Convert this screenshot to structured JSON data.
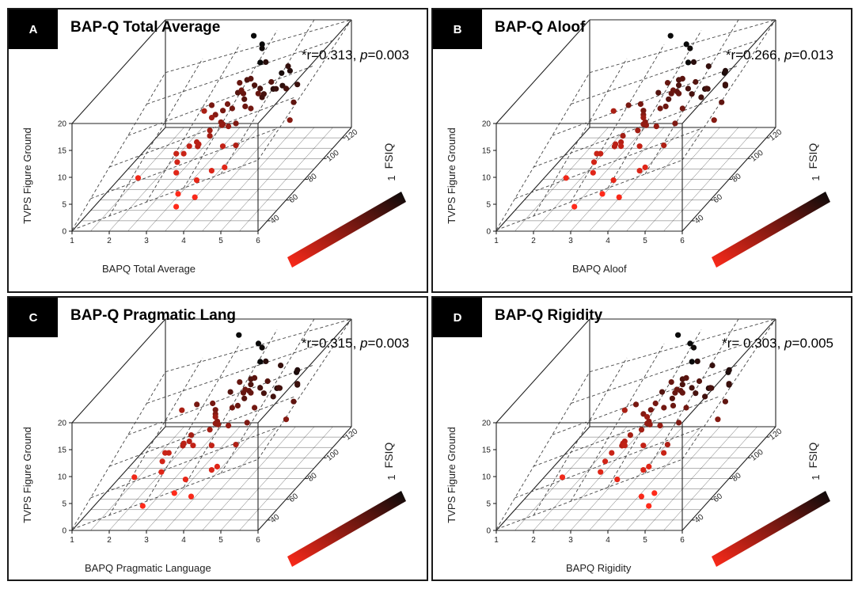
{
  "chart_data": [
    {
      "type": "scatter",
      "panel": "A",
      "title": "BAP-Q Total Average",
      "stat_prefix": "*r=0.313, ",
      "stat_p_label": "p",
      "stat_p_value": "=0.003",
      "xlabel": "BAPQ Total Average",
      "ylabel": "TVPS Figure Ground",
      "zlabel": "FSIQ",
      "x_ticks": [
        "1",
        "2",
        "3",
        "4",
        "5",
        "6"
      ],
      "y_ticks": [
        "0",
        "5",
        "10",
        "15",
        "20"
      ],
      "z_ticks": [
        "40",
        "60",
        "80",
        "100",
        "120"
      ],
      "colorbar_label": "1",
      "xlim": [
        1,
        6
      ],
      "ylim": [
        0,
        20
      ],
      "zlim": [
        30,
        130
      ],
      "x": [
        3.8,
        3.6,
        3.9,
        4.1,
        3.7,
        4.0,
        4.3,
        3.5,
        3.8,
        4.2,
        3.4,
        4.0,
        3.7,
        4.4,
        3.9,
        3.6,
        4.1,
        3.8,
        4.6,
        3.3,
        4.2,
        3.9,
        4.5,
        3.5,
        4.0,
        3.7,
        4.3,
        3.2,
        4.1,
        3.8,
        4.7,
        3.6,
        4.2,
        5.0,
        3.9,
        4.4,
        3.7,
        4.0,
        4.8,
        5.2,
        4.6,
        3.5,
        4.3,
        5.4,
        4.9,
        3.9,
        4.2,
        2.4,
        5.6,
        4.5,
        3.1,
        3.6,
        4.0,
        4.7,
        3.4,
        4.1,
        3.8,
        4.4,
        3.3,
        4.5,
        4.2,
        3.6
      ],
      "y": [
        13,
        12,
        11,
        14,
        10,
        12,
        13,
        9,
        11,
        12,
        10,
        14,
        13,
        11,
        12,
        15,
        10,
        13,
        12,
        9,
        14,
        11,
        13,
        10,
        16,
        12,
        11,
        8,
        15,
        14,
        12,
        10,
        16,
        13,
        17,
        12,
        11,
        15,
        14,
        13,
        8,
        18,
        10,
        12,
        16,
        6,
        7,
        7,
        11,
        14,
        9,
        5,
        4,
        15,
        13,
        11,
        17,
        12,
        7,
        9,
        16,
        3
      ],
      "z": [
        85,
        80,
        75,
        90,
        70,
        95,
        100,
        65,
        78,
        88,
        60,
        92,
        72,
        110,
        86,
        68,
        82,
        96,
        105,
        58,
        98,
        76,
        115,
        64,
        90,
        84,
        102,
        55,
        88,
        120,
        108,
        62,
        94,
        100,
        118,
        86,
        70,
        98,
        112,
        104,
        50,
        125,
        60,
        92,
        106,
        48,
        52,
        45,
        80,
        90,
        58,
        40,
        42,
        96,
        84,
        74,
        122,
        100,
        50,
        66,
        110,
        38
      ]
    },
    {
      "type": "scatter",
      "panel": "B",
      "title": "BAP-Q Aloof",
      "stat_prefix": "*r=0.266, ",
      "stat_p_label": "p",
      "stat_p_value": "=0.013",
      "xlabel": "BAPQ Aloof",
      "ylabel": "TVPS Figure Ground",
      "zlabel": "FSIQ",
      "x_ticks": [
        "1",
        "2",
        "3",
        "4",
        "5",
        "6"
      ],
      "y_ticks": [
        "0",
        "5",
        "10",
        "15",
        "20"
      ],
      "z_ticks": [
        "40",
        "60",
        "80",
        "100",
        "120"
      ],
      "colorbar_label": "1",
      "xlim": [
        1,
        6
      ],
      "ylim": [
        0,
        20
      ],
      "zlim": [
        30,
        130
      ],
      "x": [
        3.5,
        3.7,
        3.9,
        4.2,
        3.4,
        4.0,
        4.4,
        3.3,
        3.8,
        4.1,
        3.6,
        4.3,
        3.9,
        4.6,
        4.0,
        3.2,
        4.5,
        3.7,
        4.8,
        3.1,
        4.2,
        3.8,
        5.0,
        3.5,
        4.1,
        3.6,
        4.7,
        3.0,
        4.3,
        3.9,
        5.2,
        3.4,
        4.4,
        4.9,
        4.0,
        4.6,
        3.8,
        4.2,
        5.1,
        5.3,
        4.5,
        3.3,
        4.1,
        5.5,
        4.8,
        3.7,
        4.3,
        2.5,
        5.6,
        4.4,
        3.0,
        3.6,
        4.0,
        4.7,
        3.2,
        4.2,
        3.8,
        4.5,
        3.1,
        4.6,
        4.3,
        2.9
      ],
      "y": [
        13,
        12,
        11,
        14,
        10,
        12,
        13,
        9,
        11,
        12,
        10,
        14,
        13,
        11,
        12,
        15,
        10,
        13,
        12,
        9,
        14,
        11,
        13,
        10,
        16,
        12,
        11,
        8,
        15,
        14,
        12,
        10,
        16,
        13,
        17,
        12,
        11,
        15,
        14,
        13,
        8,
        18,
        10,
        12,
        16,
        6,
        7,
        7,
        11,
        14,
        9,
        5,
        4,
        15,
        13,
        11,
        17,
        12,
        7,
        9,
        16,
        3
      ],
      "z": [
        85,
        80,
        75,
        90,
        70,
        95,
        100,
        65,
        78,
        88,
        60,
        92,
        72,
        110,
        86,
        68,
        82,
        96,
        105,
        58,
        98,
        76,
        115,
        64,
        90,
        84,
        102,
        55,
        88,
        120,
        108,
        62,
        94,
        100,
        118,
        86,
        70,
        98,
        112,
        104,
        50,
        125,
        60,
        92,
        106,
        48,
        52,
        45,
        80,
        90,
        58,
        40,
        42,
        96,
        84,
        74,
        122,
        100,
        50,
        66,
        110,
        38
      ]
    },
    {
      "type": "scatter",
      "panel": "C",
      "title": "BAP-Q Pragmatic Lang",
      "stat_prefix": "*r=0.315, ",
      "stat_p_label": "p",
      "stat_p_value": "=0.003",
      "xlabel": "BAPQ Pragmatic Language",
      "ylabel": "TVPS Figure Ground",
      "zlabel": "FSIQ",
      "x_ticks": [
        "1",
        "2",
        "3",
        "4",
        "5",
        "6"
      ],
      "y_ticks": [
        "0",
        "5",
        "10",
        "15",
        "20"
      ],
      "z_ticks": [
        "40",
        "60",
        "80",
        "100",
        "120"
      ],
      "colorbar_label": "1",
      "xlim": [
        1,
        6
      ],
      "ylim": [
        0,
        20
      ],
      "zlim": [
        30,
        130
      ],
      "x": [
        3.4,
        3.6,
        3.8,
        4.1,
        3.2,
        4.0,
        4.3,
        3.1,
        3.7,
        4.0,
        3.5,
        4.2,
        3.8,
        4.5,
        3.9,
        3.0,
        4.4,
        3.6,
        4.7,
        2.9,
        4.1,
        3.7,
        4.9,
        3.3,
        4.0,
        3.5,
        4.6,
        2.8,
        4.2,
        3.8,
        5.1,
        3.2,
        4.3,
        4.8,
        3.9,
        4.5,
        3.7,
        4.1,
        5.0,
        5.2,
        4.4,
        3.1,
        4.0,
        5.4,
        4.7,
        3.6,
        4.2,
        2.3,
        5.5,
        4.3,
        2.8,
        3.5,
        3.9,
        4.6,
        3.0,
        4.1,
        3.7,
        4.4,
        2.9,
        4.5,
        4.2,
        2.7
      ],
      "y": [
        13,
        12,
        11,
        14,
        10,
        12,
        13,
        9,
        11,
        12,
        10,
        14,
        13,
        11,
        12,
        15,
        10,
        13,
        12,
        9,
        14,
        11,
        13,
        10,
        16,
        12,
        11,
        8,
        15,
        14,
        12,
        10,
        16,
        13,
        17,
        12,
        11,
        15,
        14,
        13,
        8,
        18,
        10,
        12,
        16,
        6,
        7,
        7,
        11,
        14,
        9,
        5,
        4,
        15,
        13,
        11,
        17,
        12,
        7,
        9,
        16,
        3
      ],
      "z": [
        85,
        80,
        75,
        90,
        70,
        95,
        100,
        65,
        78,
        88,
        60,
        92,
        72,
        110,
        86,
        68,
        82,
        96,
        105,
        58,
        98,
        76,
        115,
        64,
        90,
        84,
        102,
        55,
        88,
        120,
        108,
        62,
        94,
        100,
        118,
        86,
        70,
        98,
        112,
        104,
        50,
        125,
        60,
        92,
        106,
        48,
        52,
        45,
        80,
        90,
        58,
        40,
        42,
        96,
        84,
        74,
        122,
        100,
        50,
        66,
        110,
        38
      ]
    },
    {
      "type": "scatter",
      "panel": "D",
      "title": "BAP-Q Rigidity",
      "stat_prefix": "*r= 0.303, ",
      "stat_p_label": "p",
      "stat_p_value": "=0.005",
      "xlabel": "BAPQ Rigidity",
      "ylabel": "TVPS Figure Ground",
      "zlabel": "FSIQ",
      "x_ticks": [
        "1",
        "2",
        "3",
        "4",
        "5",
        "6"
      ],
      "y_ticks": [
        "0",
        "5",
        "10",
        "15",
        "20"
      ],
      "z_ticks": [
        "40",
        "60",
        "80",
        "100",
        "120"
      ],
      "colorbar_label": "1",
      "xlim": [
        1,
        6
      ],
      "ylim": [
        0,
        20
      ],
      "zlim": [
        30,
        130
      ],
      "x": [
        3.9,
        3.7,
        4.0,
        4.3,
        3.6,
        4.1,
        4.5,
        3.5,
        3.9,
        4.3,
        3.7,
        4.4,
        4.0,
        4.7,
        4.1,
        3.5,
        4.6,
        3.8,
        4.9,
        3.4,
        4.3,
        3.9,
        5.1,
        3.6,
        4.2,
        3.8,
        4.8,
        3.3,
        4.4,
        4.0,
        5.3,
        3.6,
        4.5,
        5.0,
        4.1,
        4.7,
        3.9,
        4.3,
        5.2,
        5.4,
        4.6,
        3.5,
        4.2,
        5.6,
        4.9,
        3.8,
        4.4,
        2.4,
        5.7,
        4.5,
        4.8,
        5.0,
        4.6,
        4.8,
        3.4,
        4.3,
        3.9,
        4.6,
        3.3,
        4.7,
        4.4,
        4.9
      ],
      "y": [
        13,
        12,
        11,
        14,
        10,
        12,
        13,
        9,
        11,
        12,
        10,
        14,
        13,
        11,
        12,
        15,
        10,
        13,
        12,
        9,
        14,
        11,
        13,
        10,
        16,
        12,
        11,
        8,
        15,
        14,
        12,
        10,
        16,
        13,
        17,
        12,
        11,
        15,
        14,
        13,
        8,
        18,
        10,
        12,
        16,
        6,
        7,
        7,
        11,
        14,
        9,
        5,
        4,
        15,
        13,
        11,
        17,
        12,
        7,
        9,
        16,
        3
      ],
      "z": [
        85,
        80,
        75,
        90,
        70,
        95,
        100,
        65,
        78,
        88,
        60,
        92,
        72,
        110,
        86,
        68,
        82,
        96,
        105,
        58,
        98,
        76,
        115,
        64,
        90,
        84,
        102,
        55,
        88,
        120,
        108,
        62,
        94,
        100,
        118,
        86,
        70,
        98,
        112,
        104,
        50,
        125,
        60,
        92,
        106,
        48,
        52,
        45,
        80,
        90,
        58,
        40,
        42,
        96,
        84,
        74,
        122,
        100,
        50,
        66,
        110,
        38
      ]
    }
  ],
  "colors": {
    "low": "#ff2a1a",
    "high": "#0a0a0a",
    "axis": "#222222",
    "dashed": "#444444"
  }
}
